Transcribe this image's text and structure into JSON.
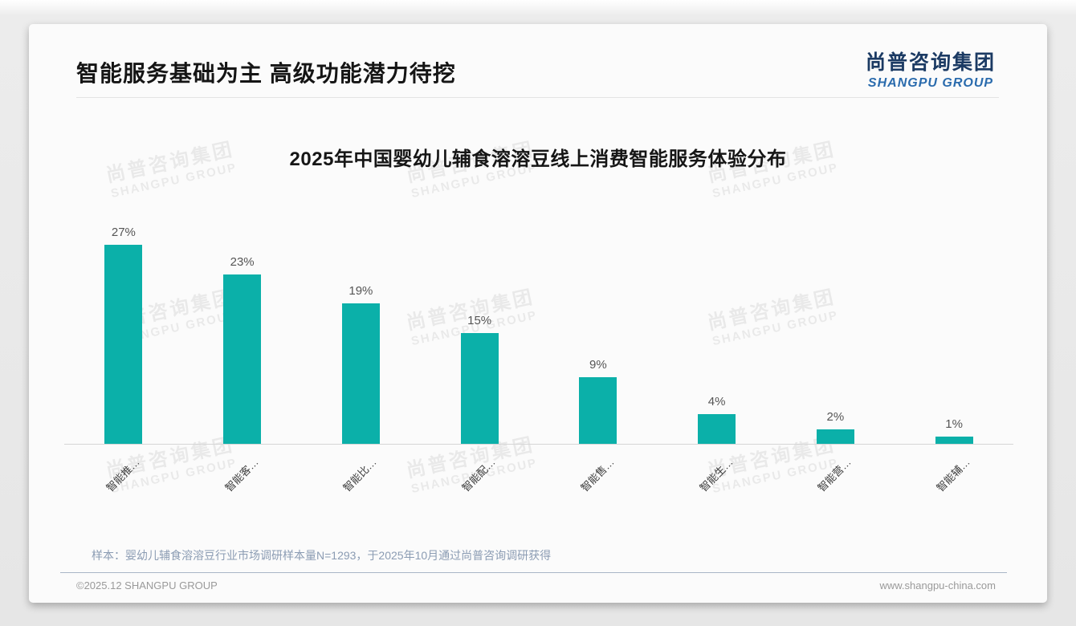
{
  "page": {
    "title": "智能服务基础为主 高级功能潜力待挖",
    "logo": {
      "cn": "尚普咨询集团",
      "en": "SHANGPU GROUP"
    },
    "watermark": {
      "cn": "尚普咨询集团",
      "en": "SHANGPU GROUP"
    },
    "note": "样本：婴幼儿辅食溶溶豆行业市场调研样本量N=1293，于2025年10月通过尚普咨询调研获得",
    "footer": {
      "copyright": "©2025.12 SHANGPU GROUP",
      "website": "www.shangpu-china.com"
    }
  },
  "chart_data": {
    "type": "bar",
    "title": "2025年中国婴幼儿辅食溶溶豆线上消费智能服务体验分布",
    "categories": [
      "智能推…",
      "智能客…",
      "智能比…",
      "智能配…",
      "智能售…",
      "智能生…",
      "智能营…",
      "智能辅…"
    ],
    "values": [
      27,
      23,
      19,
      15,
      9,
      4,
      2,
      1
    ],
    "data_labels": [
      "27%",
      "23%",
      "19%",
      "15%",
      "9%",
      "4%",
      "2%",
      "1%"
    ],
    "unit": "%",
    "ylim": [
      0,
      30
    ],
    "grid": false,
    "legend": false,
    "bar_color": "#0bb0a9",
    "value_label_color": "#555555",
    "xlabel": "",
    "ylabel": ""
  }
}
